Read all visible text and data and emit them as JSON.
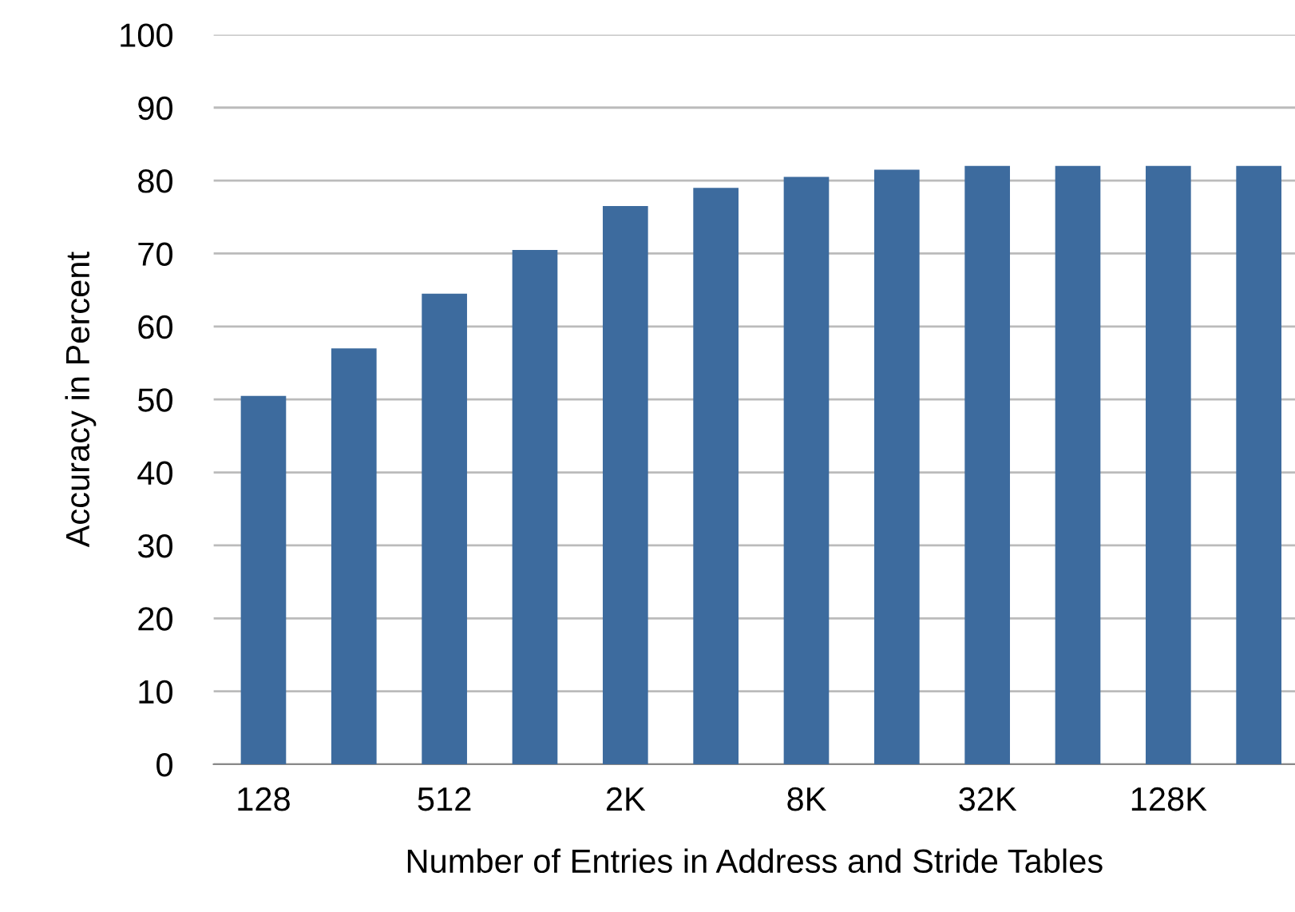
{
  "chart_data": {
    "type": "bar",
    "xlabel": "Number of Entries in Address and Stride Tables",
    "ylabel": "Accuracy in Percent",
    "categories": [
      "128",
      null,
      "512",
      null,
      "2K",
      null,
      "8K",
      null,
      "32K",
      null,
      "128K",
      null
    ],
    "values": [
      50.5,
      57,
      64.5,
      70.5,
      76.5,
      79,
      80.5,
      81.5,
      82,
      82,
      82,
      82
    ],
    "color": "#3d6b9e",
    "ylim": [
      0,
      100
    ],
    "yticks": [
      0,
      10,
      20,
      30,
      40,
      50,
      60,
      70,
      80,
      90,
      100
    ],
    "grid": "y"
  }
}
